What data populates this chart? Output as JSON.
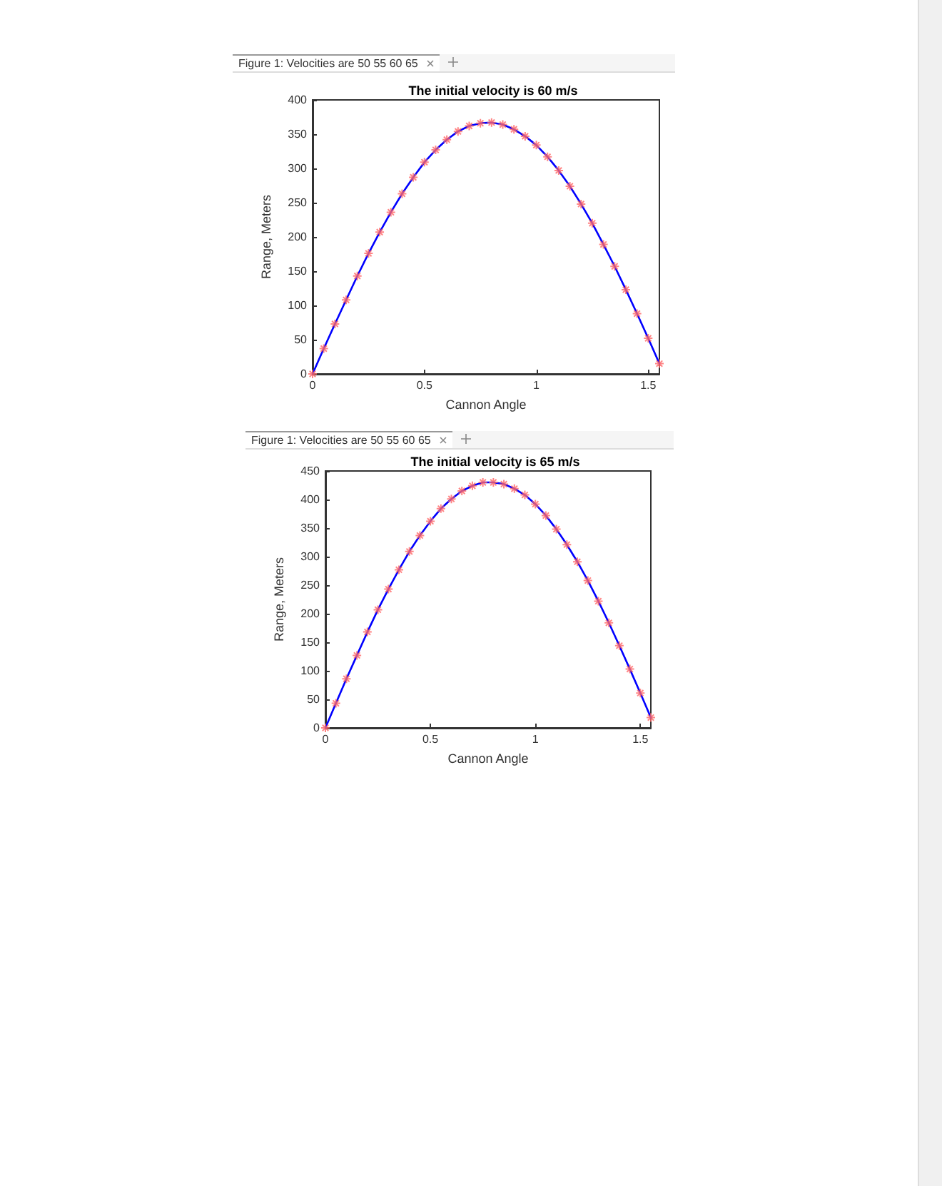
{
  "chart_data": [
    {
      "type": "line",
      "title": "The initial velocity is 60 m/s",
      "xlabel": "Cannon Angle",
      "ylabel": "Range, Meters",
      "annotations": [
        "Figure 1: Velocities are 50 55 60 65"
      ],
      "x": [
        0,
        0.05,
        0.1,
        0.15,
        0.2,
        0.25,
        0.3,
        0.35,
        0.4,
        0.45,
        0.5,
        0.55,
        0.6,
        0.65,
        0.7,
        0.75,
        0.8,
        0.85,
        0.9,
        0.95,
        1.0,
        1.05,
        1.1,
        1.15,
        1.2,
        1.25,
        1.3,
        1.35,
        1.4,
        1.45,
        1.5,
        1.55
      ],
      "series": [
        {
          "color": "#0000ff",
          "marker": "none",
          "values": [
            0,
            37,
            73,
            108,
            143,
            176,
            207,
            236,
            263,
            287,
            309,
            327,
            342,
            354,
            362,
            366,
            367,
            364,
            357,
            347,
            334,
            317,
            297,
            274,
            248,
            220,
            189,
            157,
            123,
            88,
            52,
            15
          ]
        },
        {
          "type": "scatter",
          "color": "#ff6666",
          "marker": "cross",
          "values": [
            0,
            37,
            73,
            108,
            143,
            176,
            207,
            236,
            263,
            287,
            309,
            327,
            342,
            354,
            362,
            366,
            367,
            364,
            357,
            347,
            334,
            317,
            297,
            274,
            248,
            220,
            189,
            157,
            123,
            88,
            52,
            15
          ]
        }
      ],
      "xlim": [
        0,
        1.55
      ],
      "xticks": [
        0,
        0.5,
        1,
        1.5
      ],
      "ylim": [
        0,
        400
      ],
      "yticks": [
        0,
        50,
        100,
        150,
        200,
        250,
        300,
        350,
        400
      ],
      "grid": false
    },
    {
      "type": "line",
      "title": "The initial velocity is 65 m/s",
      "xlabel": "Cannon Angle",
      "ylabel": "Range, Meters",
      "annotations": [
        "Figure 1: Velocities are 50 55 60 65"
      ],
      "x": [
        0,
        0.05,
        0.1,
        0.15,
        0.2,
        0.25,
        0.3,
        0.35,
        0.4,
        0.45,
        0.5,
        0.55,
        0.6,
        0.65,
        0.7,
        0.75,
        0.8,
        0.85,
        0.9,
        0.95,
        1.0,
        1.05,
        1.1,
        1.15,
        1.2,
        1.25,
        1.3,
        1.35,
        1.4,
        1.45,
        1.5,
        1.55
      ],
      "series": [
        {
          "color": "#0000ff",
          "marker": "none",
          "values": [
            0,
            43,
            86,
            127,
            168,
            207,
            243,
            277,
            309,
            337,
            362,
            384,
            401,
            415,
            424,
            430,
            430,
            427,
            419,
            408,
            392,
            372,
            348,
            321,
            291,
            258,
            222,
            184,
            144,
            103,
            61,
            18
          ]
        },
        {
          "type": "scatter",
          "color": "#ff6666",
          "marker": "cross",
          "values": [
            0,
            43,
            86,
            127,
            168,
            207,
            243,
            277,
            309,
            337,
            362,
            384,
            401,
            415,
            424,
            430,
            430,
            427,
            419,
            408,
            392,
            372,
            348,
            321,
            291,
            258,
            222,
            184,
            144,
            103,
            61,
            18
          ]
        }
      ],
      "xlim": [
        0,
        1.55
      ],
      "xticks": [
        0,
        0.5,
        1,
        1.5
      ],
      "ylim": [
        0,
        450
      ],
      "yticks": [
        0,
        50,
        100,
        150,
        200,
        250,
        300,
        350,
        400,
        450
      ],
      "grid": false
    }
  ]
}
